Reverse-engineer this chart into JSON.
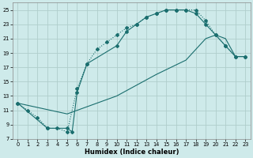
{
  "xlabel": "Humidex (Indice chaleur)",
  "bg_color": "#ceeaea",
  "grid_color": "#b0cecc",
  "line_color": "#1a6e6e",
  "xlim": [
    -0.5,
    23.5
  ],
  "ylim": [
    7,
    26
  ],
  "yticks": [
    7,
    9,
    11,
    13,
    15,
    17,
    19,
    21,
    23,
    25
  ],
  "xticks": [
    0,
    1,
    2,
    3,
    4,
    5,
    6,
    7,
    8,
    9,
    10,
    11,
    12,
    13,
    14,
    15,
    16,
    17,
    18,
    19,
    20,
    21,
    22,
    23
  ],
  "curve_dotted_x": [
    0,
    1,
    2,
    3,
    4,
    5,
    6,
    7,
    8,
    9,
    10,
    11,
    12,
    13,
    14,
    15,
    16,
    17,
    18,
    19,
    20,
    21,
    22,
    23
  ],
  "curve_dotted_y": [
    12,
    11,
    10,
    8.5,
    8.5,
    8,
    14,
    17.5,
    19.5,
    20.5,
    21.5,
    22.5,
    23,
    24,
    24.5,
    25,
    25,
    25,
    25,
    23.5,
    21.5,
    20,
    18.5,
    18.5
  ],
  "curve_solid_markers_x": [
    0,
    3,
    5,
    5.5,
    6,
    7,
    10,
    11,
    12,
    13,
    14,
    15,
    16,
    17,
    18,
    19,
    20,
    21,
    22,
    23
  ],
  "curve_solid_markers_y": [
    12,
    8.5,
    8.5,
    8,
    13.5,
    17.5,
    20,
    22,
    23,
    24,
    24.5,
    25,
    25,
    25,
    24.5,
    23,
    21.5,
    20,
    18.5,
    18.5
  ],
  "curve_straight_x": [
    0,
    5,
    10,
    14,
    17,
    19,
    20,
    21,
    22,
    23
  ],
  "curve_straight_y": [
    12,
    10.5,
    13,
    16,
    18,
    21,
    21.5,
    21,
    18.5,
    18.5
  ]
}
